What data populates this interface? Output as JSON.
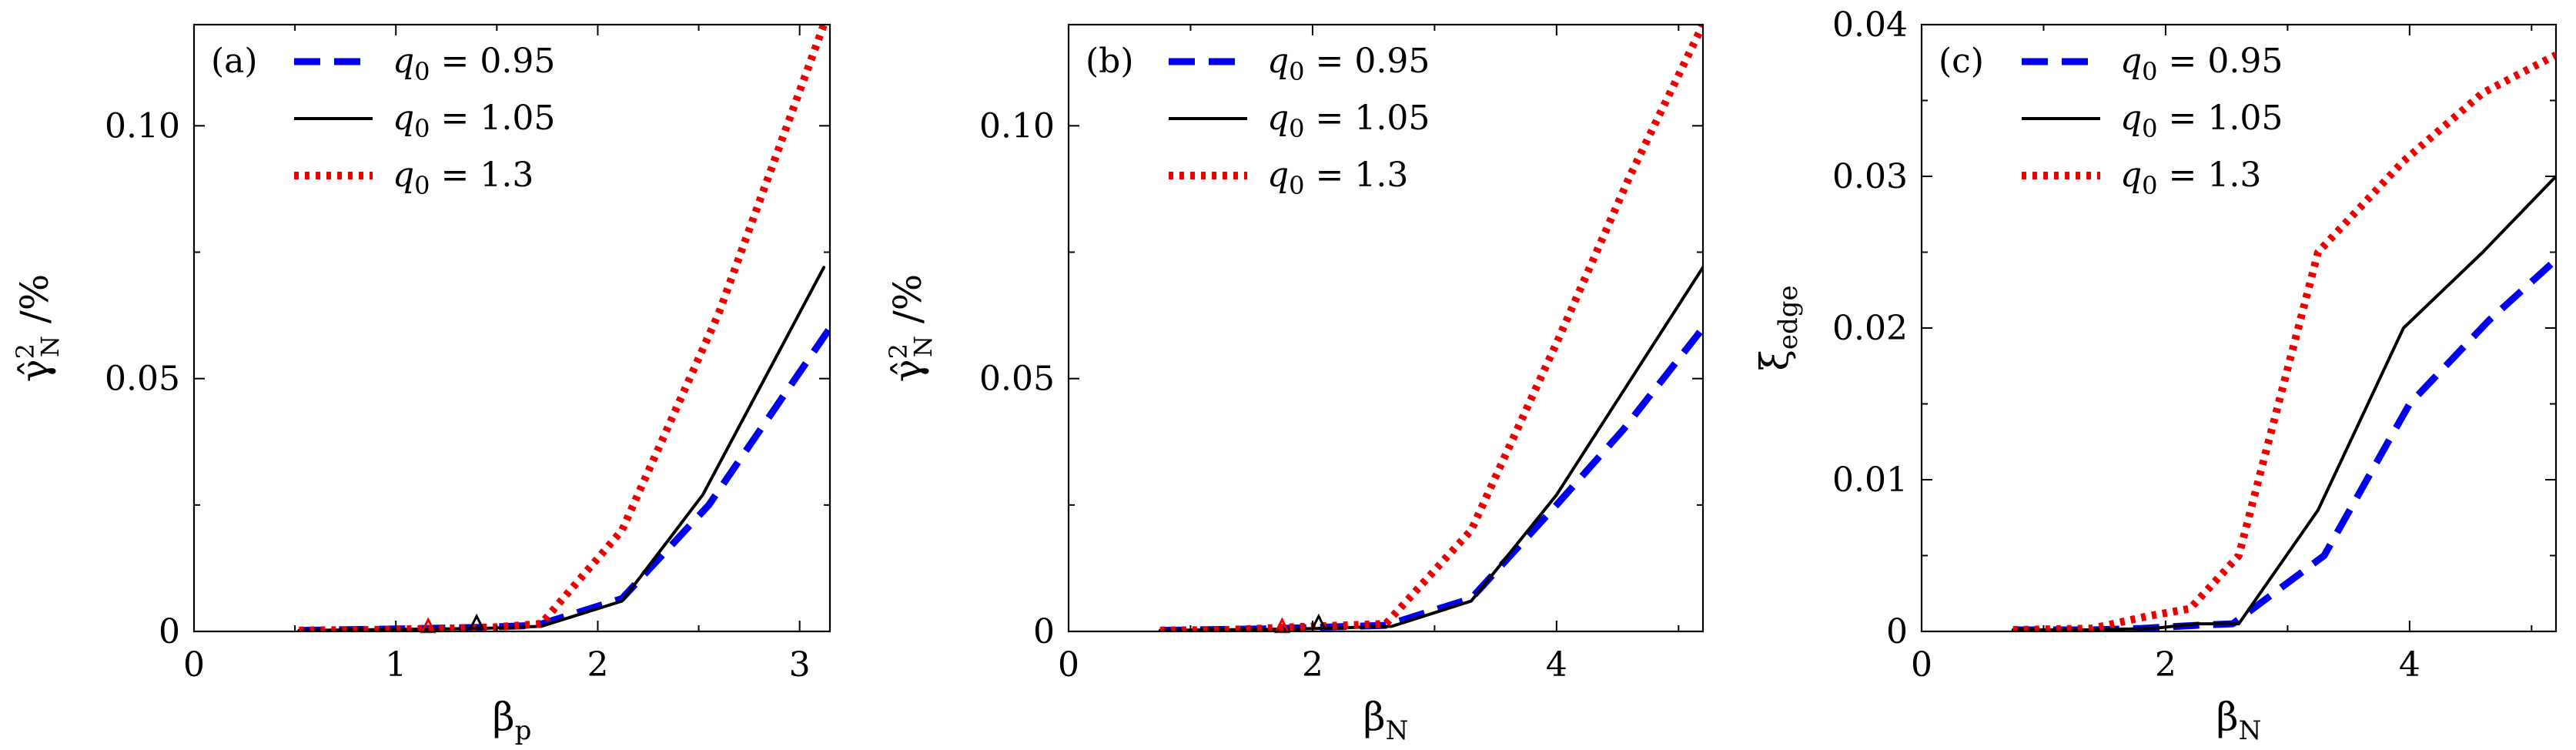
{
  "chart_data": [
    {
      "type": "line",
      "panel_label": "(a)",
      "xlabel": "β_p",
      "ylabel": "γ̂²_N /%",
      "xlim": [
        0,
        3.15
      ],
      "ylim": [
        0,
        0.12
      ],
      "xticks": [
        0,
        1,
        2,
        3
      ],
      "xtick_labels": [
        "0",
        "1",
        "2",
        "3"
      ],
      "yticks": [
        0,
        0.05,
        0.1
      ],
      "ytick_labels": [
        "0",
        "0.05",
        "0.10"
      ],
      "legend_position": "top-left",
      "series": [
        {
          "name": "q0 = 0.95",
          "color": "#0000ee",
          "style": "dashed",
          "x": [
            0.52,
            1.02,
            1.42,
            1.7,
            2.12,
            2.55,
            3.15
          ],
          "y": [
            0.0002,
            0.0005,
            0.0008,
            0.0012,
            0.0065,
            0.025,
            0.06
          ]
        },
        {
          "name": "q0 = 1.05",
          "color": "#000000",
          "style": "solid",
          "x": [
            0.52,
            1.02,
            1.42,
            1.72,
            2.12,
            2.52,
            3.12
          ],
          "y": [
            0.0002,
            0.0004,
            0.0006,
            0.001,
            0.006,
            0.027,
            0.072
          ]
        },
        {
          "name": "q0 = 1.3",
          "color": "#ee0000",
          "style": "dotted",
          "x": [
            0.52,
            0.88,
            1.15,
            1.48,
            1.72,
            2.12,
            2.6,
            3.12
          ],
          "y": [
            0.0002,
            0.0003,
            0.0005,
            0.0008,
            0.0015,
            0.02,
            0.063,
            0.12
          ]
        }
      ],
      "markers": [
        {
          "x": 1.16,
          "y": 0.0008,
          "color": "#ee0000"
        },
        {
          "x": 1.4,
          "y": 0.0015,
          "color": "#000000"
        }
      ]
    },
    {
      "type": "line",
      "panel_label": "(b)",
      "xlabel": "β_N",
      "ylabel": "γ̂²_N /%",
      "xlim": [
        0,
        5.2
      ],
      "ylim": [
        0,
        0.12
      ],
      "xticks": [
        0,
        2,
        4
      ],
      "xtick_labels": [
        "0",
        "2",
        "4"
      ],
      "yticks": [
        0,
        0.05,
        0.1
      ],
      "ytick_labels": [
        "0",
        "0.05",
        "0.10"
      ],
      "legend_position": "top-left",
      "series": [
        {
          "name": "q0 = 0.95",
          "color": "#0000ee",
          "style": "dashed",
          "x": [
            0.75,
            1.6,
            2.05,
            2.6,
            3.3,
            4.0,
            4.55,
            5.2
          ],
          "y": [
            0.0002,
            0.0005,
            0.0008,
            0.0012,
            0.0065,
            0.025,
            0.04,
            0.06
          ]
        },
        {
          "name": "q0 = 1.05",
          "color": "#000000",
          "style": "solid",
          "x": [
            0.75,
            1.6,
            2.05,
            2.65,
            3.3,
            4.0,
            5.2
          ],
          "y": [
            0.0002,
            0.0004,
            0.0006,
            0.001,
            0.006,
            0.027,
            0.072
          ]
        },
        {
          "name": "q0 = 1.3",
          "color": "#ee0000",
          "style": "dotted",
          "x": [
            0.75,
            1.3,
            1.8,
            2.6,
            3.3,
            4.0,
            4.6,
            5.2
          ],
          "y": [
            0.0002,
            0.0003,
            0.0008,
            0.0015,
            0.02,
            0.057,
            0.09,
            0.12
          ]
        }
      ],
      "markers": [
        {
          "x": 1.75,
          "y": 0.0008,
          "color": "#ee0000"
        },
        {
          "x": 2.05,
          "y": 0.0015,
          "color": "#000000"
        }
      ]
    },
    {
      "type": "line",
      "panel_label": "(c)",
      "xlabel": "β_N",
      "ylabel": "ξ_edge",
      "xlim": [
        0,
        5.2
      ],
      "ylim": [
        0,
        0.04
      ],
      "xticks": [
        0,
        2,
        4
      ],
      "xtick_labels": [
        "0",
        "2",
        "4"
      ],
      "yticks": [
        0,
        0.01,
        0.02,
        0.03,
        0.04
      ],
      "ytick_labels": [
        "0",
        "0.01",
        "0.02",
        "0.03",
        "0.04"
      ],
      "legend_position": "top-left",
      "series": [
        {
          "name": "q0 = 0.95",
          "color": "#0000ee",
          "style": "dashed",
          "x": [
            0.75,
            1.4,
            1.8,
            2.25,
            2.55,
            3.3,
            4.0,
            4.65,
            5.2
          ],
          "y": [
            0.0001,
            0.0001,
            0.0002,
            0.0004,
            0.0005,
            0.005,
            0.015,
            0.0205,
            0.0245
          ]
        },
        {
          "name": "q0 = 1.05",
          "color": "#000000",
          "style": "solid",
          "x": [
            0.75,
            1.4,
            1.9,
            2.25,
            2.6,
            3.25,
            3.95,
            4.6,
            5.2
          ],
          "y": [
            0.0001,
            0.0001,
            0.0002,
            0.0005,
            0.0005,
            0.008,
            0.02,
            0.025,
            0.03
          ]
        },
        {
          "name": "q0 = 1.3",
          "color": "#ee0000",
          "style": "dotted",
          "x": [
            0.75,
            1.4,
            1.85,
            2.2,
            2.6,
            3.25,
            3.95,
            4.6,
            5.2
          ],
          "y": [
            0.0001,
            0.0002,
            0.001,
            0.0015,
            0.005,
            0.025,
            0.031,
            0.0355,
            0.038
          ]
        }
      ]
    }
  ]
}
